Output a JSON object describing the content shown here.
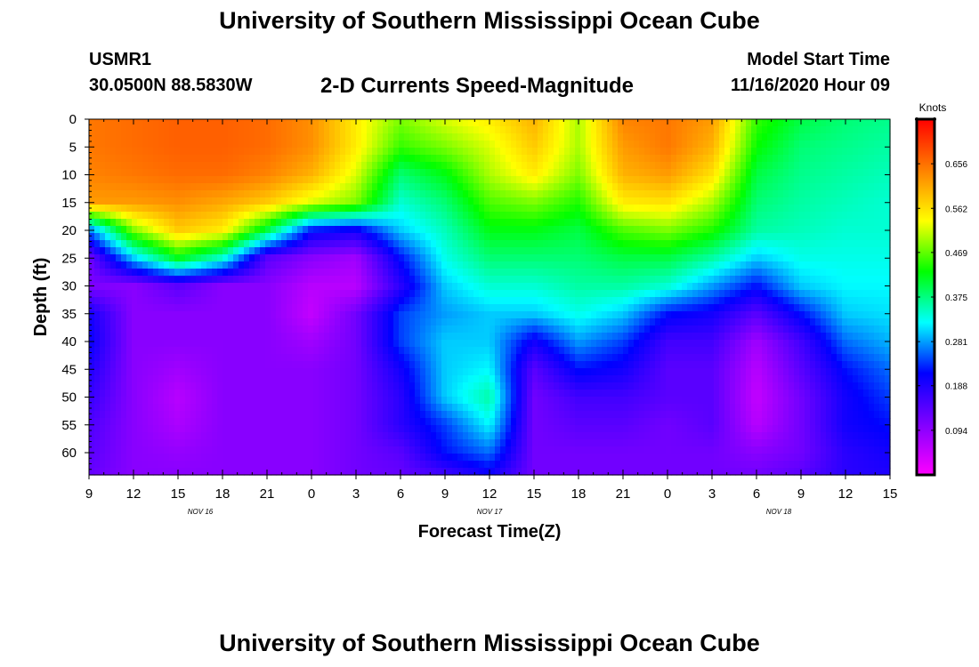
{
  "page": {
    "title_top": "University of Southern Mississippi Ocean Cube",
    "title_bottom": "University of Southern Mississippi Ocean Cube",
    "station_id": "USMR1",
    "coordinates": "30.0500N 88.5830W",
    "subtitle": "2-D Currents Speed-Magnitude",
    "model_start_label": "Model Start Time",
    "model_start_value": "11/16/2020 Hour 09"
  },
  "chart_data": {
    "type": "heatmap",
    "title": "2-D Currents Speed-Magnitude",
    "xlabel": "Forecast Time(Z)",
    "ylabel": "Depth (ft)",
    "x_tick_labels": [
      "9",
      "12",
      "15",
      "18",
      "21",
      "0",
      "3",
      "6",
      "9",
      "12",
      "15",
      "18",
      "21",
      "0",
      "3",
      "6",
      "9",
      "12",
      "15"
    ],
    "x_range_hours": [
      0,
      54
    ],
    "date_labels": [
      {
        "label": "NOV 16",
        "hour": 7.5
      },
      {
        "label": "NOV 17",
        "hour": 27
      },
      {
        "label": "NOV 18",
        "hour": 46.5
      }
    ],
    "y_tick_labels": [
      "0",
      "5",
      "10",
      "15",
      "20",
      "25",
      "30",
      "35",
      "40",
      "45",
      "50",
      "55",
      "60"
    ],
    "y_range_ft": [
      0,
      64
    ],
    "colorbar": {
      "title": "Knots",
      "range": [
        0,
        0.75
      ],
      "tick_labels": [
        "0.094",
        "0.188",
        "0.281",
        "0.375",
        "0.469",
        "0.562",
        "0.656"
      ],
      "tick_values": [
        0.094,
        0.188,
        0.281,
        0.375,
        0.469,
        0.562,
        0.656
      ],
      "colors": [
        "#ff00ff",
        "#8000ff",
        "#0000ff",
        "#00ffff",
        "#00ff00",
        "#ffff00",
        "#ff8000",
        "#ff0000"
      ]
    },
    "grid": {
      "hours": [
        0,
        3,
        6,
        9,
        12,
        15,
        18,
        21,
        24,
        27,
        30,
        33,
        36,
        39,
        42,
        45,
        48,
        51,
        54
      ],
      "depths_ft": [
        0,
        5,
        10,
        15,
        20,
        25,
        30,
        35,
        40,
        45,
        50,
        55,
        60,
        64
      ],
      "speed_knots": [
        [
          0.65,
          0.66,
          0.67,
          0.67,
          0.66,
          0.63,
          0.55,
          0.48,
          0.52,
          0.55,
          0.6,
          0.5,
          0.64,
          0.65,
          0.62,
          0.45,
          0.4,
          0.38,
          0.37
        ],
        [
          0.65,
          0.66,
          0.67,
          0.67,
          0.66,
          0.63,
          0.55,
          0.45,
          0.48,
          0.52,
          0.58,
          0.5,
          0.62,
          0.65,
          0.6,
          0.43,
          0.38,
          0.37,
          0.36
        ],
        [
          0.64,
          0.65,
          0.66,
          0.66,
          0.64,
          0.6,
          0.52,
          0.38,
          0.42,
          0.5,
          0.55,
          0.48,
          0.6,
          0.62,
          0.56,
          0.4,
          0.37,
          0.36,
          0.35
        ],
        [
          0.62,
          0.62,
          0.63,
          0.61,
          0.58,
          0.52,
          0.48,
          0.34,
          0.38,
          0.46,
          0.48,
          0.44,
          0.55,
          0.56,
          0.5,
          0.38,
          0.36,
          0.35,
          0.34
        ],
        [
          0.26,
          0.48,
          0.58,
          0.55,
          0.4,
          0.22,
          0.2,
          0.3,
          0.35,
          0.42,
          0.42,
          0.4,
          0.46,
          0.48,
          0.44,
          0.36,
          0.35,
          0.34,
          0.34
        ],
        [
          0.12,
          0.3,
          0.42,
          0.34,
          0.14,
          0.1,
          0.08,
          0.22,
          0.33,
          0.38,
          0.38,
          0.38,
          0.4,
          0.4,
          0.36,
          0.3,
          0.33,
          0.33,
          0.33
        ],
        [
          0.11,
          0.1,
          0.14,
          0.1,
          0.1,
          0.06,
          0.06,
          0.18,
          0.3,
          0.34,
          0.34,
          0.36,
          0.36,
          0.34,
          0.28,
          0.22,
          0.3,
          0.32,
          0.32
        ],
        [
          0.2,
          0.1,
          0.1,
          0.1,
          0.1,
          0.05,
          0.12,
          0.24,
          0.28,
          0.3,
          0.3,
          0.33,
          0.3,
          0.22,
          0.2,
          0.14,
          0.22,
          0.3,
          0.31
        ],
        [
          0.21,
          0.1,
          0.1,
          0.1,
          0.1,
          0.08,
          0.12,
          0.24,
          0.3,
          0.3,
          0.2,
          0.28,
          0.24,
          0.16,
          0.16,
          0.08,
          0.16,
          0.26,
          0.29
        ],
        [
          0.19,
          0.1,
          0.08,
          0.1,
          0.1,
          0.1,
          0.12,
          0.2,
          0.3,
          0.32,
          0.14,
          0.22,
          0.2,
          0.14,
          0.14,
          0.06,
          0.14,
          0.22,
          0.26
        ],
        [
          0.17,
          0.1,
          0.06,
          0.1,
          0.1,
          0.1,
          0.12,
          0.18,
          0.3,
          0.36,
          0.12,
          0.16,
          0.16,
          0.14,
          0.14,
          0.05,
          0.12,
          0.2,
          0.24
        ],
        [
          0.15,
          0.1,
          0.07,
          0.1,
          0.1,
          0.1,
          0.12,
          0.18,
          0.24,
          0.32,
          0.12,
          0.14,
          0.14,
          0.12,
          0.14,
          0.06,
          0.12,
          0.2,
          0.22
        ],
        [
          0.14,
          0.1,
          0.09,
          0.1,
          0.1,
          0.1,
          0.12,
          0.14,
          0.22,
          0.26,
          0.12,
          0.12,
          0.12,
          0.12,
          0.12,
          0.1,
          0.12,
          0.18,
          0.2
        ],
        [
          0.13,
          0.1,
          0.1,
          0.1,
          0.1,
          0.1,
          0.12,
          0.13,
          0.16,
          0.2,
          0.12,
          0.12,
          0.12,
          0.12,
          0.12,
          0.12,
          0.14,
          0.18,
          0.19
        ]
      ]
    }
  }
}
